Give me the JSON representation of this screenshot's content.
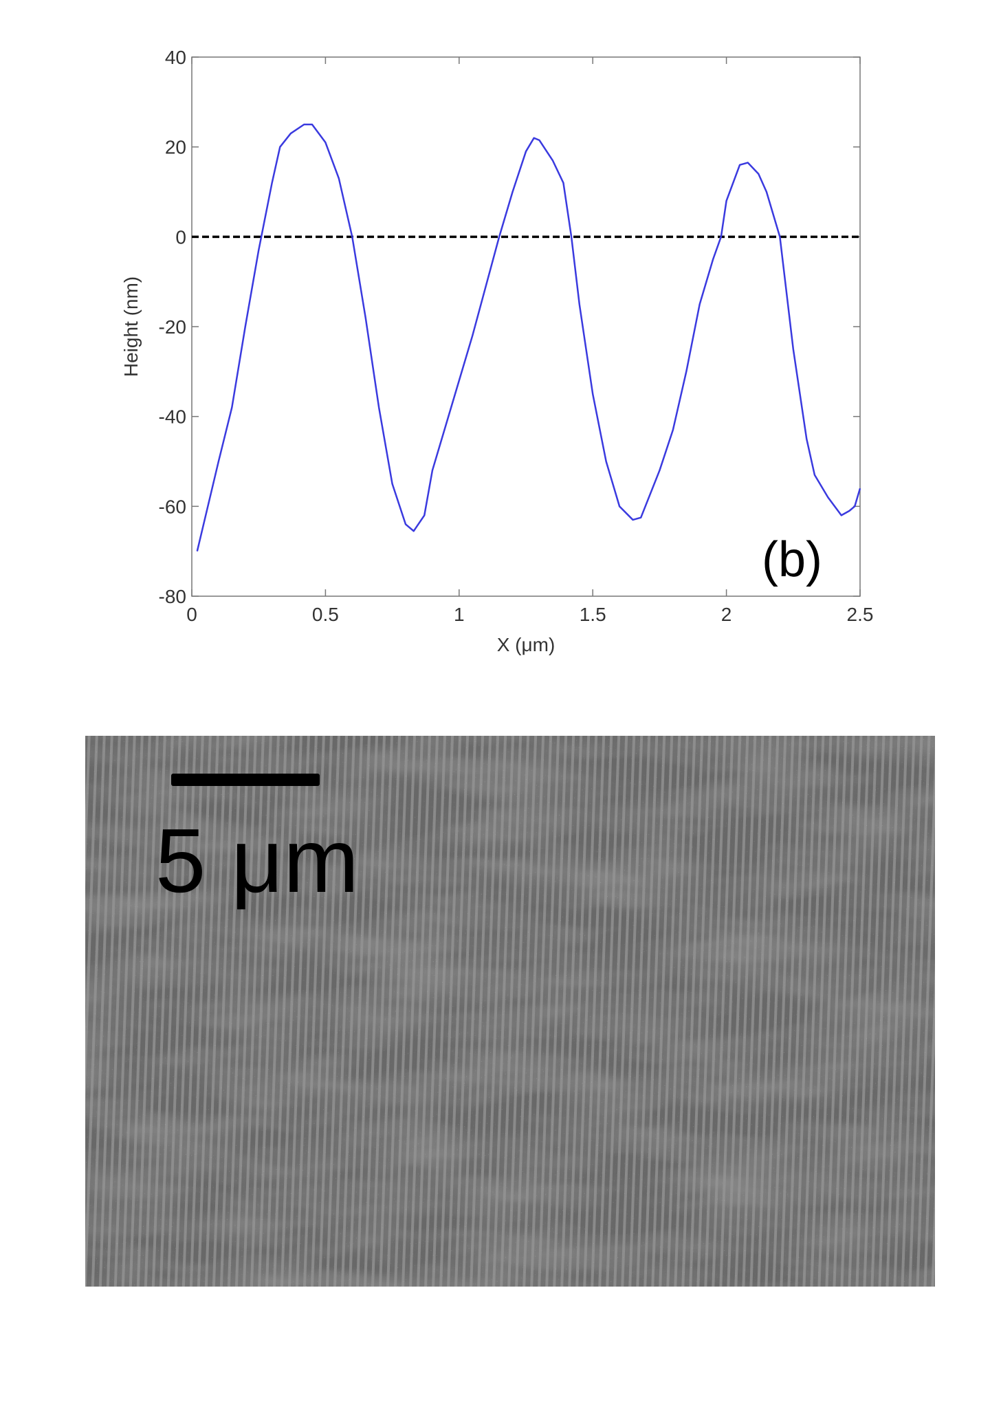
{
  "chart_data": {
    "type": "line",
    "x": [
      0.02,
      0.1,
      0.15,
      0.2,
      0.25,
      0.3,
      0.33,
      0.37,
      0.42,
      0.45,
      0.5,
      0.55,
      0.6,
      0.65,
      0.7,
      0.75,
      0.8,
      0.83,
      0.87,
      0.9,
      0.95,
      1.0,
      1.05,
      1.1,
      1.15,
      1.2,
      1.25,
      1.28,
      1.3,
      1.35,
      1.39,
      1.42,
      1.45,
      1.5,
      1.55,
      1.6,
      1.65,
      1.68,
      1.75,
      1.8,
      1.85,
      1.9,
      1.95,
      1.98,
      2.0,
      2.05,
      2.08,
      2.12,
      2.15,
      2.2,
      2.25,
      2.3,
      2.33,
      2.38,
      2.43,
      2.46,
      2.48,
      2.5
    ],
    "values": [
      -70,
      -50,
      -38,
      -20,
      -3,
      12,
      20,
      23,
      25,
      25,
      21,
      13,
      0,
      -18,
      -38,
      -55,
      -64,
      -65.5,
      -62,
      -52,
      -42,
      -32,
      -22,
      -11,
      0,
      10,
      19,
      22,
      21.5,
      17,
      12,
      0,
      -15,
      -35,
      -50,
      -60,
      -63,
      -62.5,
      -52,
      -43,
      -30,
      -15,
      -5,
      0,
      8,
      16,
      16.5,
      14,
      10,
      0,
      -25,
      -45,
      -53,
      -58,
      -62,
      -61,
      -60,
      -56
    ],
    "color": "#3a3adf",
    "xlabel": "X (μm)",
    "ylabel": "Height (nm)",
    "xlim": [
      0,
      2.5
    ],
    "xticks": [
      0,
      0.5,
      1,
      1.5,
      2,
      2.5
    ],
    "ylim": [
      -80,
      40
    ],
    "yticks": [
      -80,
      -60,
      -40,
      -20,
      0,
      20,
      40
    ],
    "reference_line": {
      "y": 0,
      "style": "dashed"
    },
    "annotation": "(b)"
  },
  "image": {
    "scale_bar_label": "5 μm"
  }
}
